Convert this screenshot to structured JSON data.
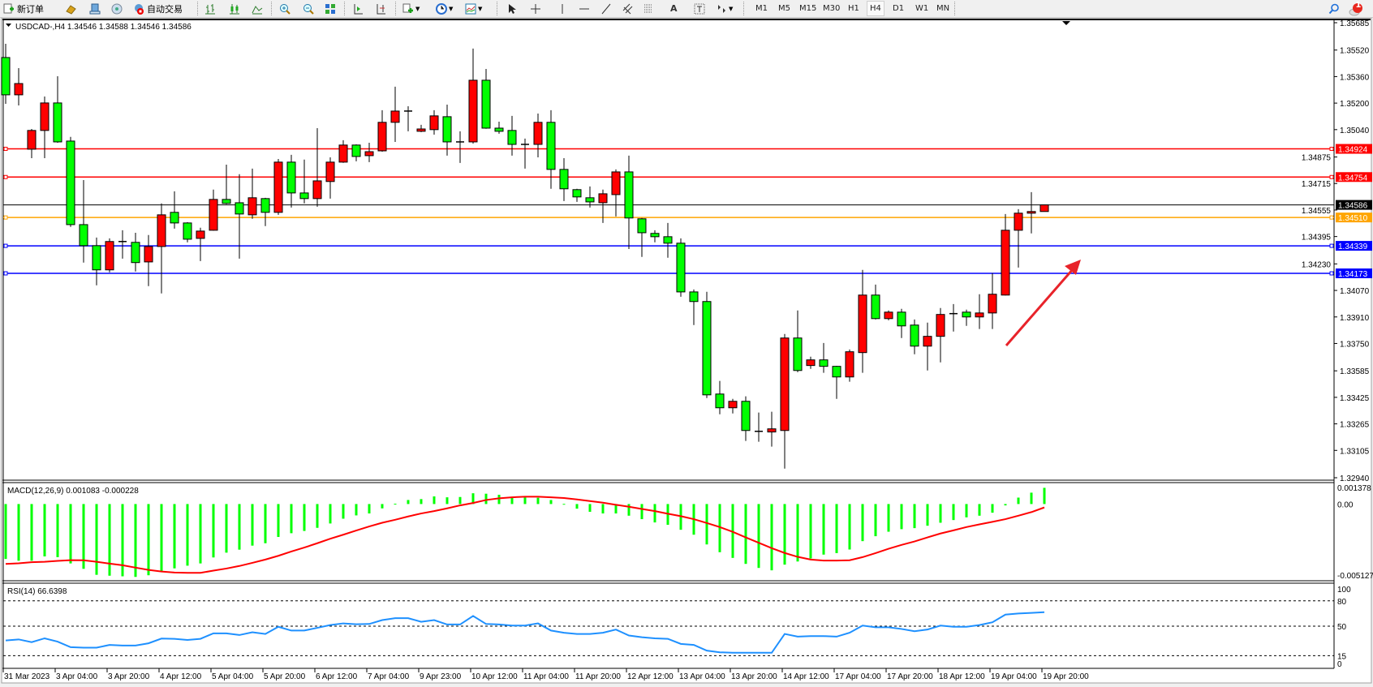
{
  "toolbar": {
    "new_order": "新订单",
    "auto_trade": "自动交易",
    "periods": [
      "M1",
      "M5",
      "M15",
      "M30",
      "H1",
      "H4",
      "D1",
      "W1",
      "MN"
    ],
    "active_period": "H4",
    "notification_count": "1"
  },
  "chart_window": {
    "title": "USDCAD-,H4  1.34546 1.34588 1.34546 1.34586",
    "macd_label": "MACD(12,26,9) 0.001083 -0.000228",
    "rsi_label": "RSI(14) 66.6398"
  },
  "chart_data": {
    "type": "candlestick",
    "symbol": "USDCAD-",
    "timeframe": "H4",
    "bull_color": "#ff0000",
    "bear_color": "#00ff00",
    "ylim": [
      1.3294,
      1.35685
    ],
    "price_ticks": [
      "1.35685",
      "1.35520",
      "1.35360",
      "1.35200",
      "1.35040",
      "1.34875",
      "1.34715",
      "1.34555",
      "1.34395",
      "1.34230",
      "1.34070",
      "1.33910",
      "1.33750",
      "1.33585",
      "1.33425",
      "1.33265",
      "1.33105",
      "1.32940"
    ],
    "time_labels": [
      "31 Mar 2023",
      "3 Apr 04:00",
      "3 Apr 20:00",
      "4 Apr 12:00",
      "5 Apr 04:00",
      "5 Apr 20:00",
      "6 Apr 12:00",
      "7 Apr 04:00",
      "9 Apr 23:00",
      "10 Apr 12:00",
      "11 Apr 04:00",
      "11 Apr 20:00",
      "12 Apr 12:00",
      "13 Apr 04:00",
      "13 Apr 20:00",
      "14 Apr 12:00",
      "17 Apr 04:00",
      "17 Apr 20:00",
      "18 Apr 12:00",
      "19 Apr 04:00",
      "19 Apr 20:00"
    ],
    "time_label_every_n_bars": 4,
    "ohlc": [
      [
        1.35475,
        1.35558,
        1.35196,
        1.3525
      ],
      [
        1.3525,
        1.35411,
        1.35186,
        1.35318
      ],
      [
        1.34922,
        1.35044,
        1.34868,
        1.35035
      ],
      [
        1.35035,
        1.3524,
        1.34868,
        1.35201
      ],
      [
        1.35201,
        1.35362,
        1.34961,
        1.34966
      ],
      [
        1.34971,
        1.34996,
        1.34453,
        1.34467
      ],
      [
        1.34467,
        1.34736,
        1.34238,
        1.3434
      ],
      [
        1.3434,
        1.34389,
        1.34101,
        1.34194
      ],
      [
        1.34194,
        1.34384,
        1.34179,
        1.34365
      ],
      [
        1.34365,
        1.34433,
        1.34262,
        1.3436
      ],
      [
        1.3436,
        1.34418,
        1.34184,
        1.34238
      ],
      [
        1.34242,
        1.34404,
        1.34096,
        1.34335
      ],
      [
        1.34335,
        1.34595,
        1.34052,
        1.34526
      ],
      [
        1.34541,
        1.34668,
        1.34443,
        1.34477
      ],
      [
        1.34477,
        1.34482,
        1.3436,
        1.34379
      ],
      [
        1.34384,
        1.34448,
        1.34247,
        1.34428
      ],
      [
        1.34433,
        1.34678,
        1.3443,
        1.34619
      ],
      [
        1.34619,
        1.34829,
        1.3459,
        1.34595
      ],
      [
        1.34599,
        1.34771,
        1.34262,
        1.34531
      ],
      [
        1.34526,
        1.34805,
        1.34502,
        1.34629
      ],
      [
        1.34624,
        1.34629,
        1.34458,
        1.34541
      ],
      [
        1.34541,
        1.34863,
        1.34526,
        1.34844
      ],
      [
        1.34844,
        1.34888,
        1.3457,
        1.34658
      ],
      [
        1.34658,
        1.34859,
        1.34595,
        1.34624
      ],
      [
        1.34624,
        1.35049,
        1.34575,
        1.34731
      ],
      [
        1.34727,
        1.34873,
        1.34624,
        1.34844
      ],
      [
        1.34844,
        1.34976,
        1.3484,
        1.34947
      ],
      [
        1.34947,
        1.34951,
        1.34849,
        1.34878
      ],
      [
        1.34883,
        1.34961,
        1.34844,
        1.34907
      ],
      [
        1.34912,
        1.35157,
        1.34907,
        1.35084
      ],
      [
        1.35084,
        1.35299,
        1.34966,
        1.35152
      ],
      [
        1.35152,
        1.35181,
        1.3503,
        1.3515
      ],
      [
        1.3503,
        1.35069,
        1.35025,
        1.35044
      ],
      [
        1.3504,
        1.35157,
        1.3501,
        1.35123
      ],
      [
        1.35118,
        1.35191,
        1.34883,
        1.34966
      ],
      [
        1.34966,
        1.3503,
        1.34839,
        1.34964
      ],
      [
        1.34966,
        1.35529,
        1.34956,
        1.35338
      ],
      [
        1.35338,
        1.35406,
        1.35045,
        1.35049
      ],
      [
        1.35049,
        1.35088,
        1.35015,
        1.3503
      ],
      [
        1.35035,
        1.35123,
        1.34883,
        1.34951
      ],
      [
        1.34951,
        1.34986,
        1.34805,
        1.34949
      ],
      [
        1.34951,
        1.35137,
        1.34873,
        1.35084
      ],
      [
        1.35084,
        1.35157,
        1.34683,
        1.348
      ],
      [
        1.348,
        1.34868,
        1.34609,
        1.34683
      ],
      [
        1.34678,
        1.34683,
        1.34604,
        1.34634
      ],
      [
        1.34629,
        1.34697,
        1.3457,
        1.34604
      ],
      [
        1.34599,
        1.34678,
        1.34477,
        1.34653
      ],
      [
        1.34648,
        1.348,
        1.34516,
        1.34785
      ],
      [
        1.34785,
        1.34883,
        1.3432,
        1.34507
      ],
      [
        1.34502,
        1.34507,
        1.34272,
        1.34418
      ],
      [
        1.34414,
        1.34433,
        1.3436,
        1.34394
      ],
      [
        1.34394,
        1.34477,
        1.34267,
        1.34355
      ],
      [
        1.34355,
        1.34384,
        1.34032,
        1.34061
      ],
      [
        1.34061,
        1.34076,
        1.33861,
        1.34003
      ],
      [
        1.34003,
        1.34062,
        1.33421,
        1.3344
      ],
      [
        1.33445,
        1.33524,
        1.33323,
        1.33362
      ],
      [
        1.33362,
        1.33416,
        1.33328,
        1.33401
      ],
      [
        1.33401,
        1.33431,
        1.33162,
        1.33225
      ],
      [
        1.3322,
        1.33333,
        1.33157,
        1.33216
      ],
      [
        1.33216,
        1.33338,
        1.33128,
        1.33235
      ],
      [
        1.33225,
        1.33807,
        1.32995,
        1.33783
      ],
      [
        1.33783,
        1.33949,
        1.33577,
        1.33587
      ],
      [
        1.33617,
        1.3367,
        1.33597,
        1.33651
      ],
      [
        1.33651,
        1.33753,
        1.33573,
        1.33612
      ],
      [
        1.33612,
        1.33615,
        1.33416,
        1.33548
      ],
      [
        1.33548,
        1.33714,
        1.33519,
        1.337
      ],
      [
        1.33695,
        1.34194,
        1.33573,
        1.34042
      ],
      [
        1.34042,
        1.34105,
        1.33895,
        1.339
      ],
      [
        1.339,
        1.33949,
        1.3389,
        1.33939
      ],
      [
        1.33939,
        1.33959,
        1.33783,
        1.33856
      ],
      [
        1.33861,
        1.33895,
        1.33685,
        1.33734
      ],
      [
        1.33734,
        1.33876,
        1.33587,
        1.33793
      ],
      [
        1.33793,
        1.33964,
        1.33636,
        1.33925
      ],
      [
        1.33925,
        1.33988,
        1.33822,
        1.3393
      ],
      [
        1.33939,
        1.33954,
        1.33856,
        1.3391
      ],
      [
        1.3391,
        1.34047,
        1.33837,
        1.33934
      ],
      [
        1.33934,
        1.34174,
        1.33837,
        1.34047
      ],
      [
        1.34042,
        1.34531,
        1.3404,
        1.34433
      ],
      [
        1.34433,
        1.3456,
        1.34208,
        1.34536
      ],
      [
        1.34536,
        1.34663,
        1.34414,
        1.34546
      ],
      [
        1.34546,
        1.34588,
        1.34546,
        1.34586
      ]
    ],
    "levels": [
      {
        "price": "1.34924",
        "color": "#ff0000"
      },
      {
        "price": "1.34754",
        "color": "#ff0000"
      },
      {
        "price": "1.34510",
        "color": "#ffa500"
      },
      {
        "price": "1.34339",
        "color": "#0000ff"
      },
      {
        "price": "1.34173",
        "color": "#0000ff"
      }
    ],
    "bid": {
      "price": "1.34586",
      "color": "#000000"
    },
    "macd": {
      "params": "12,26,9",
      "ylim": [
        -0.005127,
        0.001378
      ],
      "tick_labels": [
        "0.001378",
        "0.00",
        "-0.005127"
      ],
      "histogram_color": "#00ff00",
      "signal_color": "#ff0000",
      "histogram": [
        -0.00367,
        -0.00379,
        -0.00379,
        -0.0035,
        -0.00355,
        -0.00397,
        -0.00433,
        -0.00473,
        -0.00479,
        -0.00483,
        -0.00487,
        -0.00476,
        -0.00455,
        -0.0043,
        -0.00412,
        -0.00397,
        -0.00357,
        -0.00325,
        -0.00305,
        -0.00278,
        -0.00262,
        -0.0022,
        -0.00195,
        -0.0018,
        -0.00159,
        -0.0013,
        -0.00098,
        -0.00076,
        -0.00063,
        -0.00029,
        2e-05,
        0.00027,
        0.00033,
        0.00051,
        0.00045,
        0.00047,
        0.00072,
        0.00069,
        0.00062,
        0.00047,
        0.00045,
        0.00042,
        0.00027,
        1e-05,
        -0.00031,
        -0.00052,
        -0.00063,
        -0.00063,
        -0.00078,
        -0.00101,
        -0.00123,
        -0.00139,
        -0.00172,
        -0.00205,
        -0.0027,
        -0.00322,
        -0.0036,
        -0.004,
        -0.00427,
        -0.00443,
        -0.00405,
        -0.00384,
        -0.00364,
        -0.00338,
        -0.00328,
        -0.00304,
        -0.00248,
        -0.00215,
        -0.00185,
        -0.00168,
        -0.00161,
        -0.00145,
        -0.00125,
        -0.00107,
        -0.00089,
        -0.00078,
        -0.00058,
        -9e-05,
        0.00043,
        0.00076,
        0.001083
      ],
      "signal": [
        -0.004,
        -0.00396,
        -0.00389,
        -0.00386,
        -0.0038,
        -0.00375,
        -0.00376,
        -0.00386,
        -0.00398,
        -0.00409,
        -0.00425,
        -0.0044,
        -0.00451,
        -0.00458,
        -0.0046,
        -0.0046,
        -0.00445,
        -0.00431,
        -0.00414,
        -0.00393,
        -0.00371,
        -0.00346,
        -0.00317,
        -0.00291,
        -0.00262,
        -0.00232,
        -0.00205,
        -0.00177,
        -0.0015,
        -0.00125,
        -0.00105,
        -0.00083,
        -0.00063,
        -0.00047,
        -0.00029,
        -9e-05,
        7e-05,
        0.00027,
        0.00038,
        0.00045,
        0.00049,
        0.00049,
        0.00045,
        0.0004,
        0.00031,
        0.0002,
        9e-05,
        -5e-05,
        -0.00018,
        -0.00033,
        -0.00047,
        -0.00065,
        -0.00081,
        -0.00101,
        -0.00127,
        -0.00154,
        -0.00186,
        -0.00223,
        -0.00259,
        -0.00295,
        -0.00327,
        -0.00353,
        -0.00371,
        -0.00378,
        -0.00378,
        -0.00376,
        -0.00355,
        -0.00328,
        -0.00299,
        -0.00273,
        -0.0025,
        -0.00223,
        -0.00197,
        -0.00176,
        -0.00154,
        -0.00136,
        -0.00119,
        -0.00101,
        -0.00078,
        -0.00054,
        -0.000228
      ]
    },
    "rsi": {
      "period": 14,
      "ylim": [
        0,
        100
      ],
      "levels": [
        80,
        50,
        15
      ],
      "tick_labels": [
        "100",
        "80",
        "50",
        "15",
        "0"
      ],
      "color": "#1e90ff",
      "values": [
        33,
        34.3,
        31,
        35.6,
        31.7,
        25.1,
        24.5,
        24.5,
        27.8,
        27.1,
        27.1,
        29.7,
        35.3,
        35,
        33.6,
        35,
        41.5,
        41.5,
        39.5,
        42.8,
        40.8,
        49.3,
        44.8,
        44.8,
        48,
        51.3,
        53.3,
        52.3,
        52.6,
        57.2,
        59.5,
        59.5,
        55.2,
        57.2,
        52,
        52,
        62.1,
        52.6,
        52,
        50.7,
        50.7,
        53.3,
        44.8,
        42.2,
        40.8,
        40.8,
        42.2,
        46,
        38.9,
        36.9,
        35.6,
        35,
        29,
        27.8,
        21,
        19,
        18.5,
        18.5,
        18.5,
        18.5,
        40.8,
        37.6,
        38.2,
        38.2,
        37.6,
        42.2,
        50.7,
        48.7,
        48.7,
        46.7,
        44,
        46,
        50.7,
        49.3,
        49.3,
        51.3,
        54.6,
        63.7,
        65,
        65.7,
        66.6398
      ]
    }
  }
}
